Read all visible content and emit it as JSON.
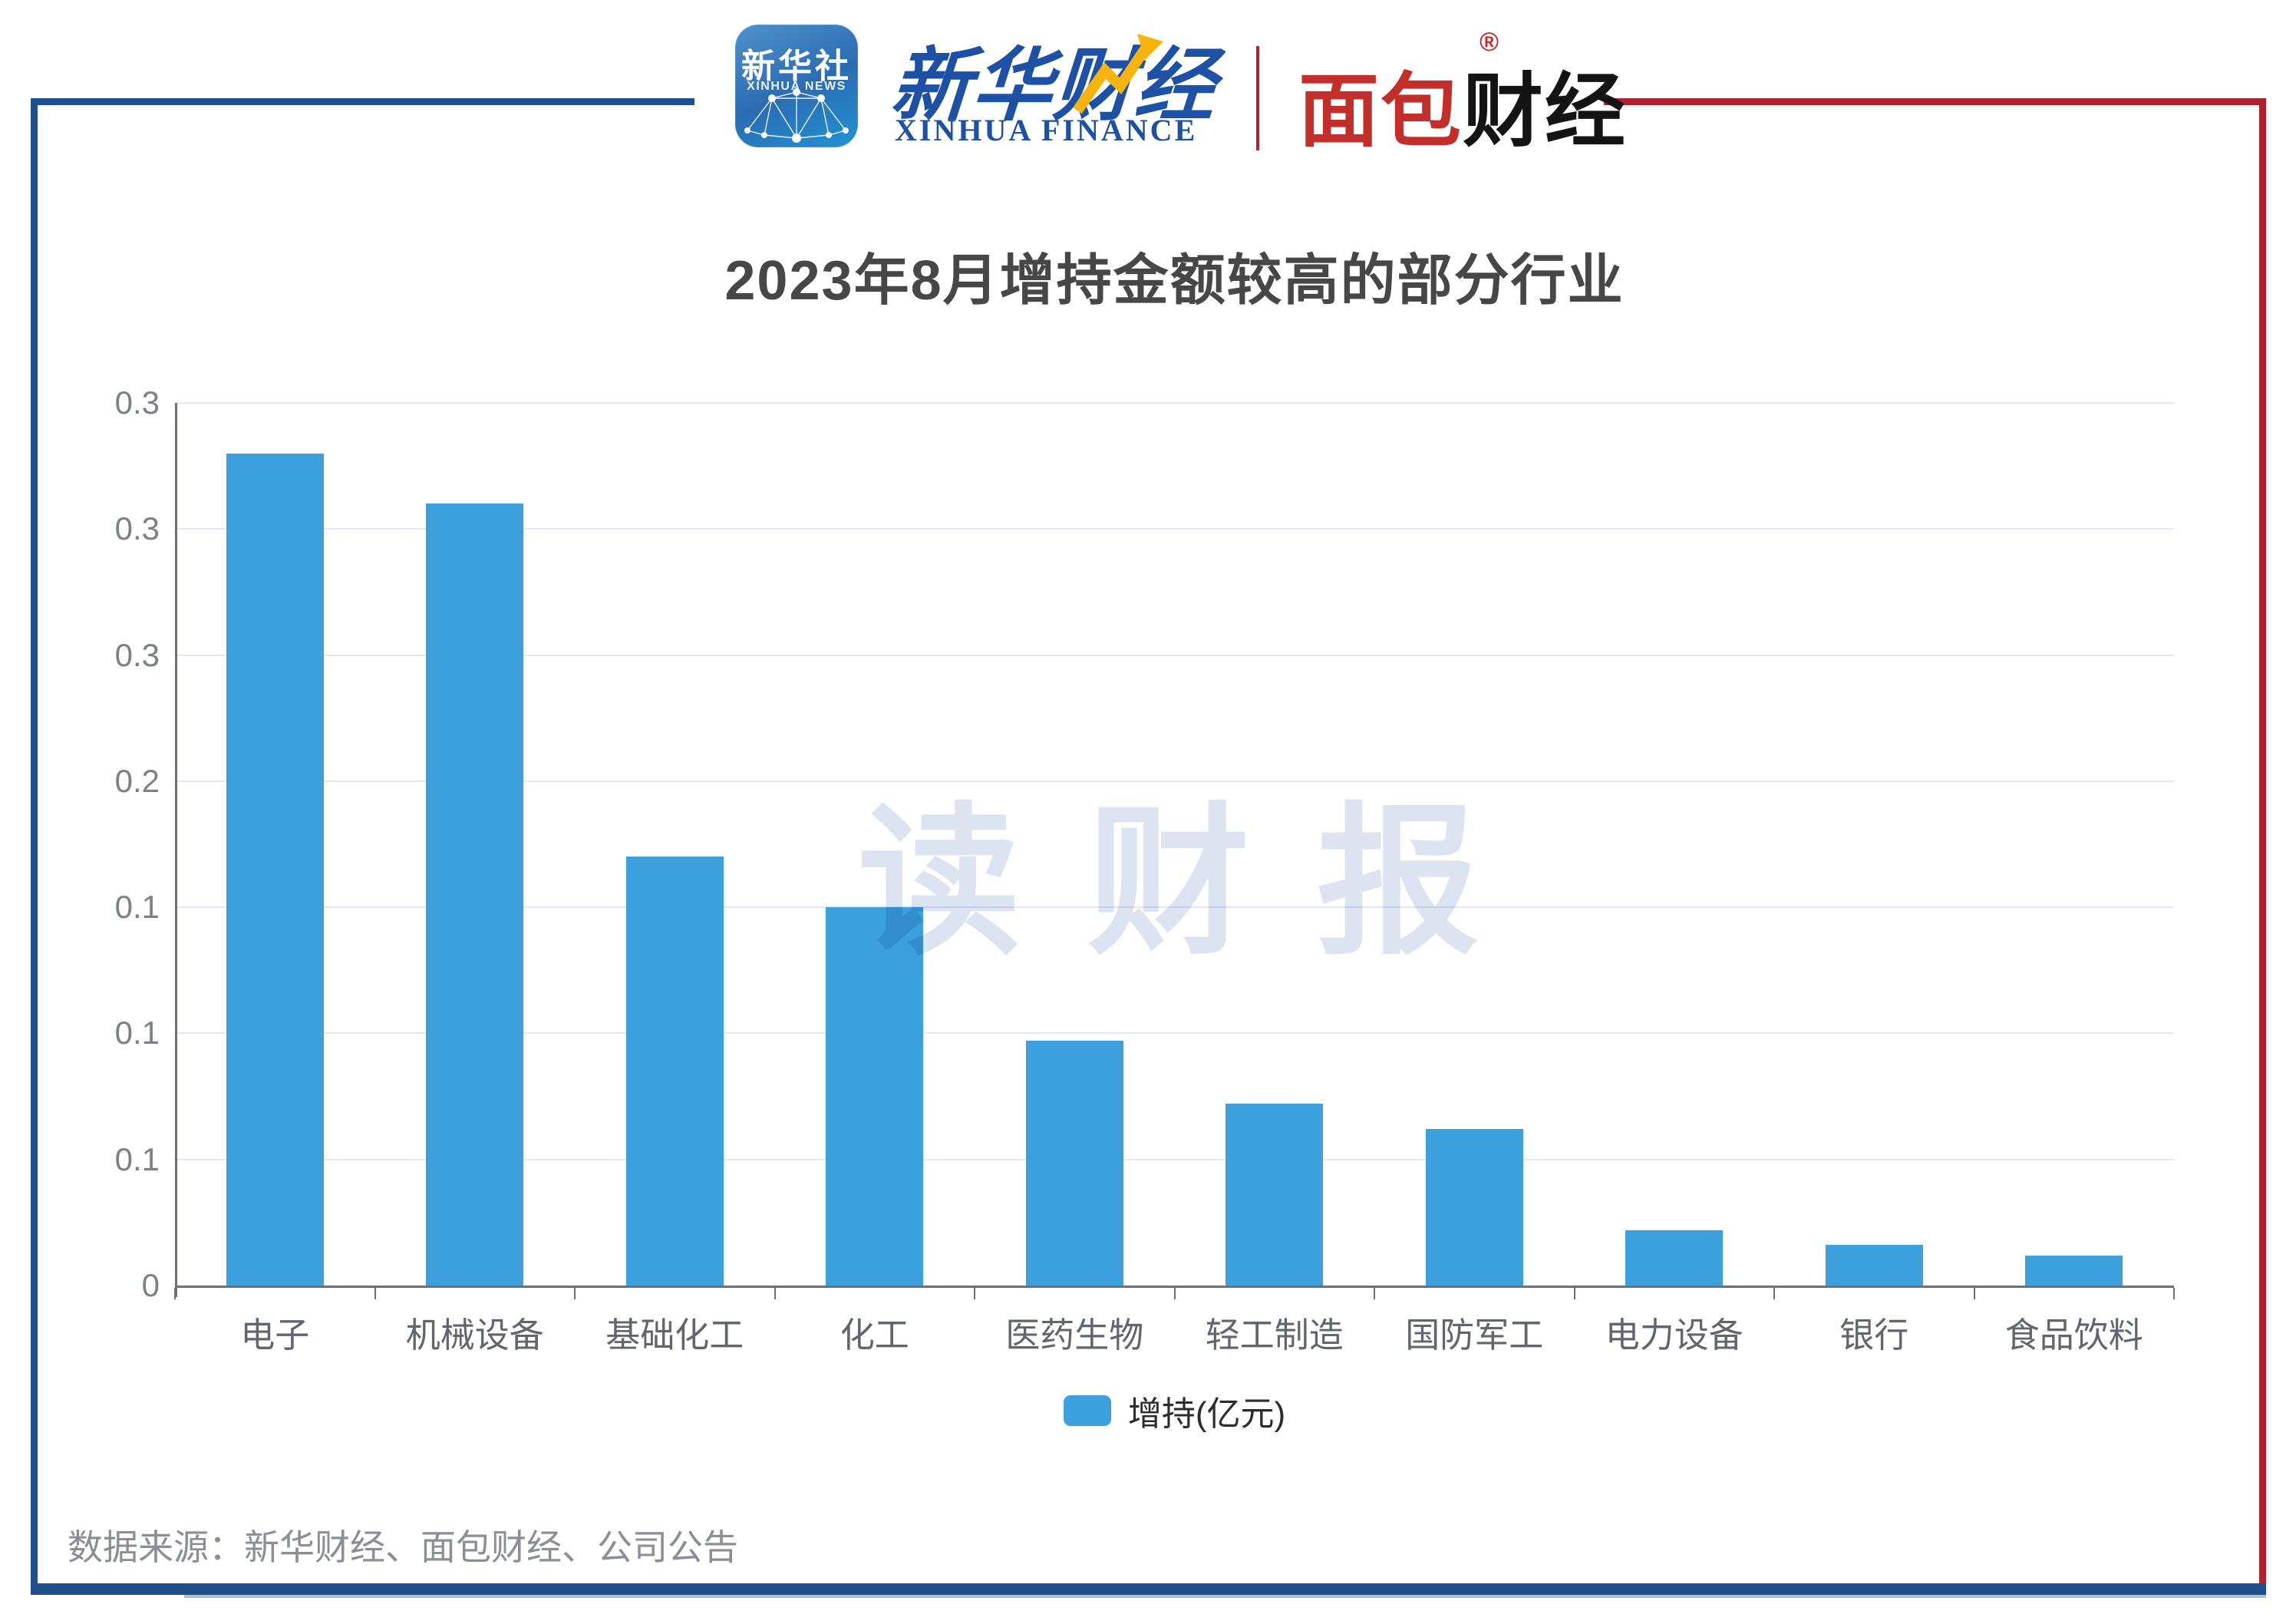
{
  "header": {
    "xinhua_app": {
      "cn": "新华社",
      "en": "XINHUA NEWS"
    },
    "xinhua_finance": {
      "cn": "新华财经",
      "en": "XINHUA FINANCE"
    },
    "mianbao": {
      "cn_red": "面包",
      "cn_black": "财经",
      "reg": "®"
    }
  },
  "chart_data": {
    "type": "bar",
    "title": "2023年8月增持金额较高的部分行业",
    "categories": [
      "电子",
      "机械设备",
      "基础化工",
      "化工",
      "医药生物",
      "轻工制造",
      "国防军工",
      "电力设备",
      "银行",
      "食品饮料"
    ],
    "values": [
      0.33,
      0.31,
      0.17,
      0.15,
      0.097,
      0.072,
      0.062,
      0.022,
      0.016,
      0.012
    ],
    "series_name": "增持(亿元)",
    "xlabel": "",
    "ylabel": "",
    "ylim": [
      0,
      0.35
    ],
    "ytick_step": 0.05,
    "ytick_labels_top_to_bottom": [
      "0.3",
      "0.3",
      "0.3",
      "0.2",
      "0.1",
      "0.1",
      "0.1",
      "0"
    ],
    "grid": true,
    "legend_position": "bottom",
    "bar_color": "#3ba0db"
  },
  "legend": {
    "label": "增持(亿元)"
  },
  "watermark": "读 财 报",
  "footer": {
    "source": "数据来源：新华财经、面包财经、公司公告"
  },
  "colors": {
    "frame_blue": "#1f4e8f",
    "frame_red": "#ad2430",
    "bar_blue": "#3ba0db",
    "gridline": "#e3e8f3",
    "axis": "#6E7079",
    "title_text": "#474747",
    "watermark": "#dce3f1"
  }
}
